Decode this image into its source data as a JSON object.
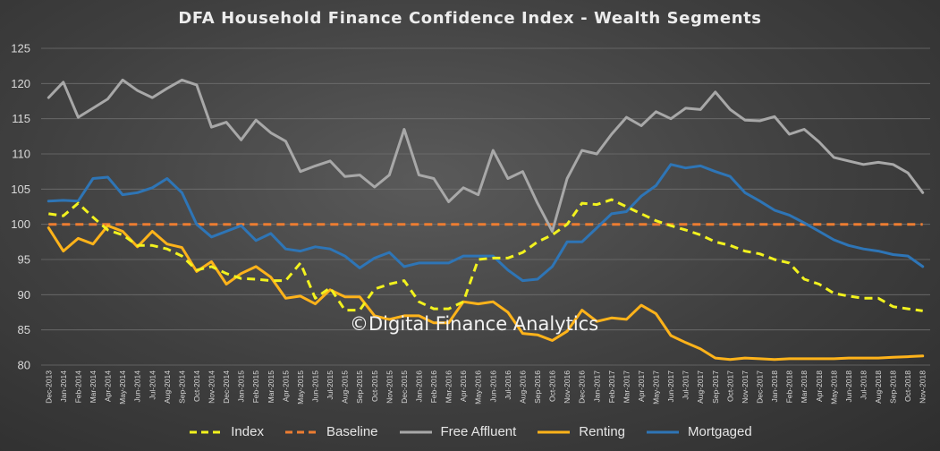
{
  "chart_data": {
    "type": "line",
    "title": "DFA Household Finance Confidence Index - Wealth Segments",
    "xlabel": "",
    "ylabel": "",
    "ylim": [
      80,
      125
    ],
    "yticks": [
      80,
      85,
      90,
      95,
      100,
      105,
      110,
      115,
      120,
      125
    ],
    "grid": true,
    "legend_position": "bottom",
    "categories": [
      "Dec-2013",
      "Jan-2014",
      "Feb-2014",
      "Mar-2014",
      "Apr-2014",
      "May-2014",
      "Jun-2014",
      "Jul-2014",
      "Aug-2014",
      "Sep-2014",
      "Oct-2014",
      "Nov-2014",
      "Dec-2014",
      "Jan-2015",
      "Feb-2015",
      "Mar-2015",
      "Apr-2015",
      "May-2015",
      "Jun-2015",
      "Jul-2015",
      "Aug-2015",
      "Sep-2015",
      "Oct-2015",
      "Nov-2015",
      "Dec-2015",
      "Jan-2016",
      "Feb-2016",
      "Mar-2016",
      "Apr-2016",
      "May-2016",
      "Jun-2016",
      "Jul-2016",
      "Aug-2016",
      "Sep-2016",
      "Oct-2016",
      "Nov-2016",
      "Dec-2016",
      "Jan-2017",
      "Feb-2017",
      "Mar-2017",
      "Apr-2017",
      "May-2017",
      "Jun-2017",
      "Jul-2017",
      "Aug-2017",
      "Sep-2017",
      "Oct-2017",
      "Nov-2017",
      "Dec-2017",
      "Jan-2018",
      "Feb-2018",
      "Mar-2018",
      "Apr-2018",
      "May-2018",
      "Jun-2018",
      "Jul-2018",
      "Aug-2018",
      "Sep-2018",
      "Oct-2018",
      "Nov-2018"
    ],
    "series": [
      {
        "name": "Index",
        "color": "#f2f21e",
        "dash": "dashed",
        "values": [
          101.5,
          101.2,
          103.0,
          101.0,
          99.2,
          98.5,
          97.0,
          97.0,
          96.5,
          95.5,
          93.5,
          94.0,
          93.0,
          92.3,
          92.2,
          92.0,
          92.0,
          94.5,
          89.5,
          91.0,
          87.8,
          87.8,
          90.8,
          91.5,
          92.0,
          89.0,
          88.0,
          88.0,
          89.0,
          95.0,
          95.2,
          95.2,
          96.0,
          97.5,
          98.5,
          100.0,
          103.0,
          102.8,
          103.5,
          102.5,
          101.5,
          100.5,
          99.8,
          99.2,
          98.5,
          97.5,
          97.0,
          96.2,
          95.8,
          95.0,
          94.5,
          92.2,
          91.5,
          90.2,
          89.8,
          89.5,
          89.5,
          88.3,
          88.0,
          87.7
        ]
      },
      {
        "name": "Baseline",
        "color": "#ed7d31",
        "dash": "dashed",
        "values": [
          100,
          100,
          100,
          100,
          100,
          100,
          100,
          100,
          100,
          100,
          100,
          100,
          100,
          100,
          100,
          100,
          100,
          100,
          100,
          100,
          100,
          100,
          100,
          100,
          100,
          100,
          100,
          100,
          100,
          100,
          100,
          100,
          100,
          100,
          100,
          100,
          100,
          100,
          100,
          100,
          100,
          100,
          100,
          100,
          100,
          100,
          100,
          100,
          100,
          100,
          100,
          100,
          100,
          100,
          100,
          100,
          100,
          100,
          100,
          100
        ]
      },
      {
        "name": "Free Affluent",
        "color": "#a8a8a8",
        "dash": "solid",
        "values": [
          118.0,
          120.2,
          115.2,
          116.5,
          117.8,
          120.5,
          119.0,
          118.0,
          119.3,
          120.5,
          119.8,
          113.8,
          114.5,
          112.0,
          114.8,
          113.0,
          111.8,
          107.5,
          108.3,
          109.0,
          106.8,
          107.0,
          105.3,
          107.0,
          113.5,
          107.0,
          106.5,
          103.2,
          105.2,
          104.2,
          110.5,
          106.5,
          107.5,
          103.0,
          99.0,
          106.5,
          110.5,
          110.0,
          112.8,
          115.2,
          114.0,
          116.0,
          115.0,
          116.5,
          116.3,
          118.8,
          116.3,
          114.8,
          114.7,
          115.3,
          112.8,
          113.5,
          111.7,
          109.5,
          109.0,
          108.5,
          108.8,
          108.5,
          107.3,
          104.5
        ]
      },
      {
        "name": "Renting",
        "color": "#ffb31a",
        "dash": "solid",
        "values": [
          99.5,
          96.2,
          98.0,
          97.2,
          99.8,
          99.0,
          96.8,
          99.0,
          97.2,
          96.7,
          93.3,
          94.7,
          91.5,
          93.0,
          94.0,
          92.5,
          89.5,
          89.8,
          88.7,
          90.7,
          89.7,
          89.7,
          87.0,
          86.5,
          87.0,
          87.0,
          86.0,
          86.0,
          89.0,
          88.7,
          89.0,
          87.5,
          84.5,
          84.3,
          83.5,
          84.8,
          87.8,
          86.2,
          86.7,
          86.5,
          88.5,
          87.3,
          84.2,
          83.2,
          82.3,
          81.0,
          80.8,
          81.0,
          80.9,
          80.8,
          80.9,
          80.9,
          80.9,
          80.9,
          81.0,
          81.0,
          81.0,
          81.1,
          81.2,
          81.3
        ]
      },
      {
        "name": "Mortgaged",
        "color": "#2e75b6",
        "dash": "solid",
        "values": [
          103.3,
          103.4,
          103.3,
          106.5,
          106.7,
          104.2,
          104.5,
          105.2,
          106.5,
          104.5,
          100.0,
          98.2,
          99.0,
          99.8,
          97.7,
          98.7,
          96.5,
          96.2,
          96.8,
          96.5,
          95.5,
          93.8,
          95.2,
          96.0,
          94.0,
          94.5,
          94.5,
          94.5,
          95.5,
          95.5,
          95.5,
          93.5,
          92.0,
          92.2,
          94.0,
          97.5,
          97.5,
          99.5,
          101.5,
          101.8,
          104.0,
          105.5,
          108.5,
          108.0,
          108.3,
          107.5,
          106.8,
          104.5,
          103.3,
          102.0,
          101.3,
          100.2,
          99.0,
          97.8,
          97.0,
          96.5,
          96.2,
          95.7,
          95.5,
          94.0
        ]
      }
    ]
  },
  "watermark": "©Digital Finance Analytics"
}
